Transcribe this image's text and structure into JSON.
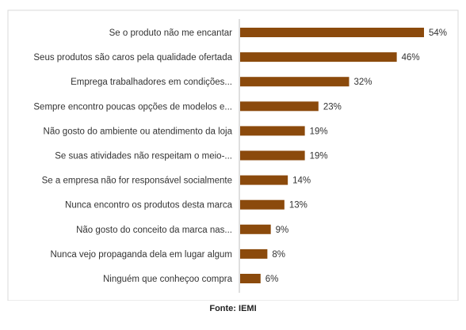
{
  "chart_data": {
    "type": "bar",
    "orientation": "horizontal",
    "categories": [
      "Se o produto não me encantar",
      "Seus produtos são caros pela qualidade ofertada",
      "Emprega trabalhadores em condições...",
      "Sempre encontro poucas opções de modelos e...",
      "Não gosto do ambiente ou atendimento da loja",
      "Se suas atividades não respeitam o meio-...",
      "Se a empresa não for responsável socialmente",
      "Nunca encontro os produtos desta marca",
      "Não gosto do conceito da marca nas...",
      "Nunca vejo propaganda dela em lugar algum",
      "Ninguém que conheçoo compra"
    ],
    "values": [
      54,
      46,
      32,
      23,
      19,
      19,
      14,
      13,
      9,
      8,
      6
    ],
    "value_labels": [
      "54%",
      "46%",
      "32%",
      "23%",
      "19%",
      "19%",
      "14%",
      "13%",
      "9%",
      "8%",
      "6%"
    ],
    "xlim": [
      0,
      54
    ],
    "grid": false,
    "bar_color": "#8B4a0c",
    "title": "",
    "xlabel": "",
    "ylabel": ""
  },
  "source": "Fonte: IEMI"
}
